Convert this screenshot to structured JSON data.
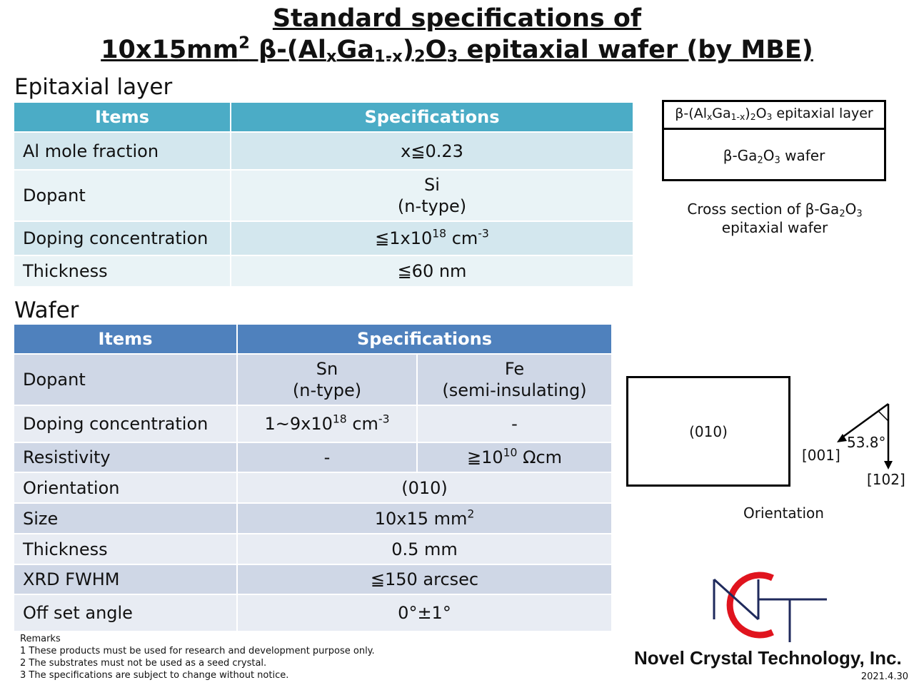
{
  "title": {
    "line1": "Standard specifications of",
    "line2_prefix": "10x15mm",
    "line2_sup": "2",
    "line2_a": " β-(Al",
    "line2_sub_x": "x",
    "line2_b": "Ga",
    "line2_sub_1x": "1-x",
    "line2_c": ")",
    "line2_sub_2": "2",
    "line2_d": "O",
    "line2_sub_3": "3",
    "line2_e": " epitaxial wafer (by MBE)"
  },
  "epitaxial": {
    "section_title": "Epitaxial layer",
    "header_items": "Items",
    "header_specs": "Specifications",
    "rows": [
      {
        "item": "Al mole fraction",
        "value": "x≦0.23"
      },
      {
        "item": "Dopant",
        "value_line1": "Si",
        "value_line2": "(n-type)"
      },
      {
        "item": "Doping concentration",
        "value_a": "≦1x10",
        "value_sup": "18",
        "value_b": " cm",
        "value_sup2": "-3"
      },
      {
        "item": "Thickness",
        "value": "≦60 nm"
      }
    ]
  },
  "wafer": {
    "section_title": "Wafer",
    "header_items": "Items",
    "header_specs": "Specifications",
    "dopant": {
      "item": "Dopant",
      "sn_line1": "Sn",
      "sn_line2": "(n-type)",
      "fe_line1": "Fe",
      "fe_line2": "(semi-insulating)"
    },
    "doping": {
      "item": "Doping concentration",
      "sn_a": "1~9x10",
      "sn_sup": "18",
      "sn_b": " cm",
      "sn_sup2": "-3",
      "fe": "-"
    },
    "resistivity": {
      "item": "Resistivity",
      "sn": "-",
      "fe_a": "≧10",
      "fe_sup": "10",
      "fe_b": " Ωcm"
    },
    "orientation": {
      "item": "Orientation",
      "value": "(010)"
    },
    "size": {
      "item": "Size",
      "value_a": "10x15 mm",
      "value_sup": "2"
    },
    "thickness": {
      "item": "Thickness",
      "value": "0.5 mm"
    },
    "xrd": {
      "item": "XRD FWHM",
      "value": "≦150 arcsec"
    },
    "offset": {
      "item": "Off set angle",
      "value": "0°±1°"
    }
  },
  "cross_section": {
    "layer_a": "β-(Al",
    "layer_x": "x",
    "layer_b": "Ga",
    "layer_1x": "1-x",
    "layer_c": ")",
    "layer_2": "2",
    "layer_d": "O",
    "layer_3": "3",
    "layer_e": " epitaxial layer",
    "wafer_a": "β-Ga",
    "wafer_2": "2",
    "wafer_b": "O",
    "wafer_3": "3",
    "wafer_c": " wafer",
    "caption_a": "Cross section of β-Ga",
    "caption_2": "2",
    "caption_b": "O",
    "caption_3": "3",
    "caption_line2": "epitaxial wafer"
  },
  "orientation_diagram": {
    "face_label": "(010)",
    "angle_label": "53.8°",
    "dir_001": "[001]",
    "dir_102": "[102]",
    "caption": "Orientation"
  },
  "logo": {
    "company": "Novel Crystal Technology, Inc.",
    "monogram": "NCT",
    "colors": {
      "red": "#e0141e",
      "navy": "#1f2a5c"
    }
  },
  "remarks": {
    "heading": "Remarks",
    "items": [
      "1 These products must be used for research and development purpose only.",
      "2 The substrates must not be used as a seed crystal.",
      "3 The specifications are subject to change without notice."
    ]
  },
  "date": "2021.4.30",
  "colors": {
    "epi_header": "#4bacc6",
    "wafer_header": "#4f81bd"
  }
}
